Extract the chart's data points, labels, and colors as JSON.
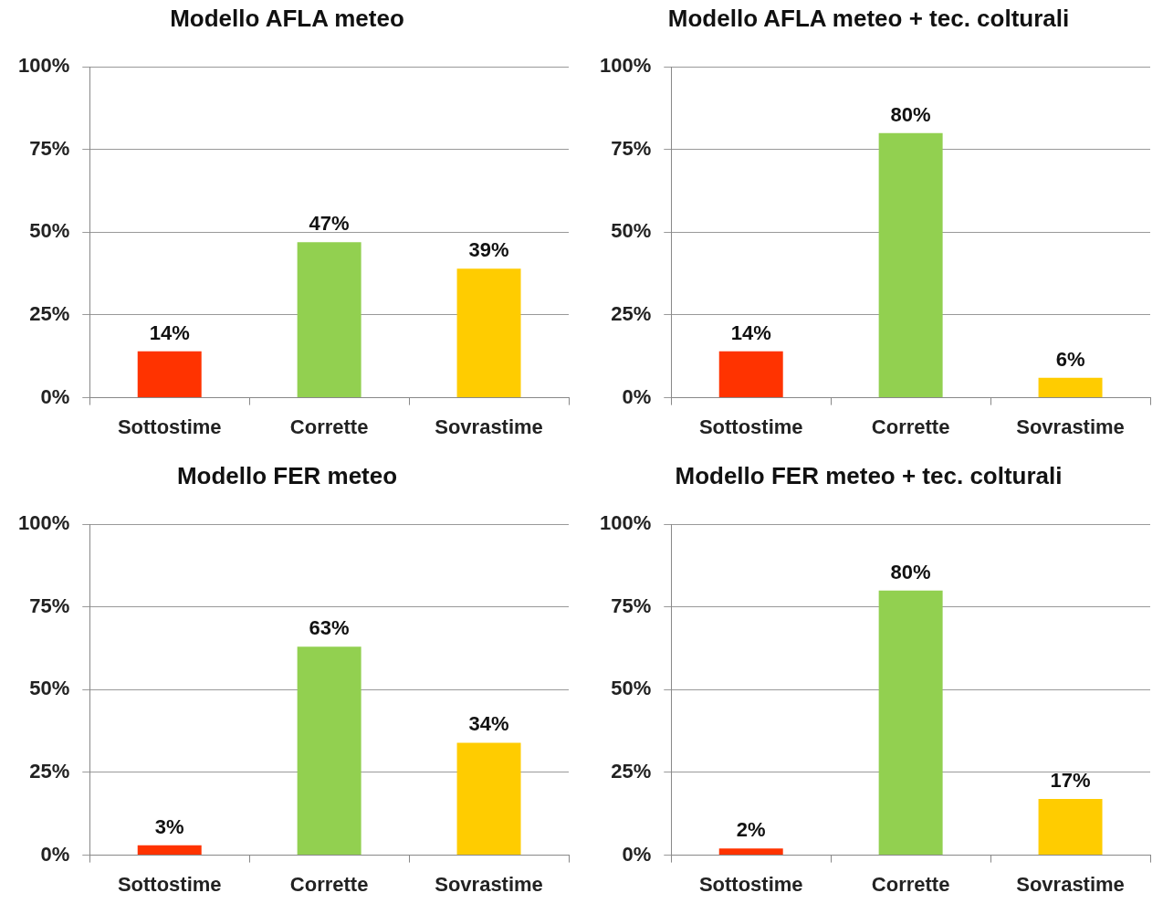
{
  "chart_data": [
    {
      "type": "bar",
      "title": "Modello AFLA meteo",
      "categories": [
        "Sottostime",
        "Corrette",
        "Sovrastime"
      ],
      "values": [
        14,
        47,
        39
      ],
      "colors": [
        "#ff3300",
        "#92d050",
        "#ffcc00"
      ],
      "value_labels": [
        "14%",
        "47%",
        "39%"
      ],
      "ylim": [
        0,
        100
      ],
      "yticks": [
        {
          "value": 0,
          "label": "0%"
        },
        {
          "value": 25,
          "label": "25%"
        },
        {
          "value": 50,
          "label": "50%"
        },
        {
          "value": 75,
          "label": "75%"
        },
        {
          "value": 100,
          "label": "100%"
        }
      ],
      "grid": "y",
      "legend": false
    },
    {
      "type": "bar",
      "title": "Modello AFLA meteo + tec. colturali",
      "categories": [
        "Sottostime",
        "Corrette",
        "Sovrastime"
      ],
      "values": [
        14,
        80,
        6
      ],
      "colors": [
        "#ff3300",
        "#92d050",
        "#ffcc00"
      ],
      "value_labels": [
        "14%",
        "80%",
        "6%"
      ],
      "ylim": [
        0,
        100
      ],
      "yticks": [
        {
          "value": 0,
          "label": "0%"
        },
        {
          "value": 25,
          "label": "25%"
        },
        {
          "value": 50,
          "label": "50%"
        },
        {
          "value": 75,
          "label": "75%"
        },
        {
          "value": 100,
          "label": "100%"
        }
      ],
      "grid": "y",
      "legend": false
    },
    {
      "type": "bar",
      "title": "Modello FER meteo",
      "categories": [
        "Sottostime",
        "Corrette",
        "Sovrastime"
      ],
      "values": [
        3,
        63,
        34
      ],
      "colors": [
        "#ff3300",
        "#92d050",
        "#ffcc00"
      ],
      "value_labels": [
        "3%",
        "63%",
        "34%"
      ],
      "ylim": [
        0,
        100
      ],
      "yticks": [
        {
          "value": 0,
          "label": "0%"
        },
        {
          "value": 25,
          "label": "25%"
        },
        {
          "value": 50,
          "label": "50%"
        },
        {
          "value": 75,
          "label": "75%"
        },
        {
          "value": 100,
          "label": "100%"
        }
      ],
      "grid": "y",
      "legend": false
    },
    {
      "type": "bar",
      "title": "Modello FER meteo + tec. colturali",
      "categories": [
        "Sottostime",
        "Corrette",
        "Sovrastime"
      ],
      "values": [
        2,
        80,
        17
      ],
      "colors": [
        "#ff3300",
        "#92d050",
        "#ffcc00"
      ],
      "value_labels": [
        "2%",
        "80%",
        "17%"
      ],
      "ylim": [
        0,
        100
      ],
      "yticks": [
        {
          "value": 0,
          "label": "0%"
        },
        {
          "value": 25,
          "label": "25%"
        },
        {
          "value": 50,
          "label": "50%"
        },
        {
          "value": 75,
          "label": "75%"
        },
        {
          "value": 100,
          "label": "100%"
        }
      ],
      "grid": "y",
      "legend": false
    }
  ]
}
